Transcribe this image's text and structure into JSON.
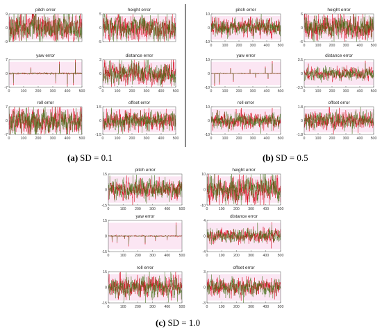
{
  "colors": {
    "series_red": "#d8091c",
    "series_green": "#3f6d12",
    "band": "#fbe6f3",
    "axis": "#555555",
    "divider": "#111111"
  },
  "groups": [
    {
      "id": "a",
      "caption_label": "(a)",
      "caption_text": "SD = 0.1"
    },
    {
      "id": "b",
      "caption_label": "(b)",
      "caption_text": "SD = 0.5"
    },
    {
      "id": "c",
      "caption_label": "(c)",
      "caption_text": "SD = 1.0"
    }
  ],
  "chart_data": [
    {
      "group": "a",
      "panel": "pitch-error",
      "type": "line",
      "title": "pitch error",
      "x_range": [
        0,
        500
      ],
      "xticks": [],
      "ylim": [
        -9,
        9
      ],
      "yticks": [
        -9,
        0,
        9
      ],
      "series": [
        {
          "color": "#d8091c"
        },
        {
          "color": "#3f6d12"
        }
      ],
      "amplitude": 0.8,
      "spikes": []
    },
    {
      "group": "a",
      "panel": "height-error",
      "type": "line",
      "title": "height error",
      "x_range": [
        0,
        500
      ],
      "xticks": [],
      "ylim": [
        -5,
        5
      ],
      "yticks": [
        -5,
        0,
        5
      ],
      "series": [
        {
          "color": "#d8091c"
        },
        {
          "color": "#3f6d12"
        }
      ],
      "amplitude": 0.7,
      "spikes": []
    },
    {
      "group": "a",
      "panel": "yaw-error",
      "type": "line",
      "title": "yaw error",
      "x_range": [
        0,
        500
      ],
      "xticks": [
        0,
        100,
        200,
        300,
        400,
        500
      ],
      "ylim": [
        -7,
        7
      ],
      "yticks": [
        -7,
        0,
        7
      ],
      "series": [
        {
          "color": "#d8091c"
        },
        {
          "color": "#3f6d12"
        }
      ],
      "amplitude": 0.05,
      "spikes": [
        {
          "x": 30,
          "y": -6
        },
        {
          "x": 150,
          "y": 3
        },
        {
          "x": 320,
          "y": -5
        },
        {
          "x": 345,
          "y": 6
        },
        {
          "x": 400,
          "y": -6.5
        },
        {
          "x": 440,
          "y": -6
        },
        {
          "x": 455,
          "y": 7
        }
      ]
    },
    {
      "group": "a",
      "panel": "distance-error",
      "type": "line",
      "title": "distance error",
      "x_range": [
        0,
        500
      ],
      "xticks": [
        0,
        100,
        200,
        300,
        400,
        500
      ],
      "ylim": [
        -3,
        3
      ],
      "yticks": [
        -3,
        0,
        3
      ],
      "series": [
        {
          "color": "#d8091c"
        },
        {
          "color": "#3f6d12"
        }
      ],
      "amplitude": 0.6,
      "spikes": [
        {
          "x": 20,
          "y": 2.8
        },
        {
          "x": 60,
          "y": -2.9
        },
        {
          "x": 470,
          "y": 3
        }
      ]
    },
    {
      "group": "a",
      "panel": "roll-error",
      "type": "line",
      "title": "roll error",
      "x_range": [
        0,
        500
      ],
      "xticks": [
        0,
        100,
        200,
        300,
        400,
        500
      ],
      "ylim": [
        -7,
        7
      ],
      "yticks": [
        -7,
        0,
        7
      ],
      "series": [
        {
          "color": "#d8091c"
        },
        {
          "color": "#3f6d12"
        }
      ],
      "amplitude": 0.75,
      "spikes": []
    },
    {
      "group": "a",
      "panel": "offset-error",
      "type": "line",
      "title": "offset error",
      "x_range": [
        0,
        500
      ],
      "xticks": [
        0,
        100,
        200,
        300,
        400,
        500
      ],
      "ylim": [
        -1.5,
        1.5
      ],
      "yticks": [
        -1.5,
        0,
        1.5
      ],
      "series": [
        {
          "color": "#d8091c"
        },
        {
          "color": "#3f6d12"
        }
      ],
      "amplitude": 0.55,
      "spikes": []
    },
    {
      "group": "b",
      "panel": "pitch-error",
      "type": "line",
      "title": "pitch error",
      "x_range": [
        0,
        500
      ],
      "xticks": [
        0,
        100,
        200,
        300,
        400,
        500
      ],
      "ylim": [
        -10,
        10
      ],
      "yticks": [
        -10,
        0,
        10
      ],
      "series": [
        {
          "color": "#d8091c"
        },
        {
          "color": "#3f6d12"
        }
      ],
      "amplitude": 0.5,
      "spikes": []
    },
    {
      "group": "b",
      "panel": "height-error",
      "type": "line",
      "title": "height error",
      "x_range": [
        0,
        500
      ],
      "xticks": [
        0,
        100,
        200,
        300,
        400,
        500
      ],
      "ylim": [
        -6,
        6
      ],
      "yticks": [
        -6,
        0,
        6
      ],
      "series": [
        {
          "color": "#d8091c"
        },
        {
          "color": "#3f6d12"
        }
      ],
      "amplitude": 0.7,
      "spikes": [
        {
          "x": 440,
          "y": -5.5
        }
      ]
    },
    {
      "group": "b",
      "panel": "yaw-error",
      "type": "line",
      "title": "yaw error",
      "x_range": [
        0,
        500
      ],
      "xticks": [
        0,
        100,
        200,
        300,
        400,
        500
      ],
      "ylim": [
        -10,
        10
      ],
      "yticks": [
        -10,
        0,
        10
      ],
      "series": [
        {
          "color": "#d8091c"
        },
        {
          "color": "#3f6d12"
        }
      ],
      "amplitude": 0.03,
      "spikes": [
        {
          "x": 25,
          "y": -9
        },
        {
          "x": 60,
          "y": -8
        },
        {
          "x": 140,
          "y": 4
        },
        {
          "x": 160,
          "y": -6
        },
        {
          "x": 280,
          "y": 3
        },
        {
          "x": 320,
          "y": -3
        },
        {
          "x": 390,
          "y": 5
        },
        {
          "x": 410,
          "y": -4
        },
        {
          "x": 440,
          "y": 9
        }
      ]
    },
    {
      "group": "b",
      "panel": "distance-error",
      "type": "line",
      "title": "distance error",
      "x_range": [
        0,
        500
      ],
      "xticks": [
        0,
        100,
        200,
        300,
        400,
        500
      ],
      "ylim": [
        -3.5,
        3.5
      ],
      "yticks": [
        -3.5,
        0,
        3.5
      ],
      "series": [
        {
          "color": "#d8091c"
        },
        {
          "color": "#3f6d12"
        }
      ],
      "amplitude": 0.35,
      "spikes": [
        {
          "x": 30,
          "y": 2.5
        },
        {
          "x": 440,
          "y": 3.2
        }
      ]
    },
    {
      "group": "b",
      "panel": "roll-error",
      "type": "line",
      "title": "roll error",
      "x_range": [
        0,
        500
      ],
      "xticks": [
        0,
        100,
        200,
        300,
        400,
        500
      ],
      "ylim": [
        -10,
        10
      ],
      "yticks": [
        -10,
        0,
        10
      ],
      "series": [
        {
          "color": "#d8091c"
        },
        {
          "color": "#3f6d12"
        }
      ],
      "amplitude": 0.45,
      "spikes": []
    },
    {
      "group": "b",
      "panel": "offset-error",
      "type": "line",
      "title": "offset error",
      "x_range": [
        0,
        500
      ],
      "xticks": [
        0,
        100,
        200,
        300,
        400,
        500
      ],
      "ylim": [
        -1.8,
        1.8
      ],
      "yticks": [
        -1.8,
        0,
        1.8
      ],
      "series": [
        {
          "color": "#d8091c"
        },
        {
          "color": "#3f6d12"
        }
      ],
      "amplitude": 0.5,
      "spikes": []
    },
    {
      "group": "c",
      "panel": "pitch-error",
      "type": "line",
      "title": "pitch error",
      "x_range": [
        0,
        500
      ],
      "xticks": [
        0,
        100,
        200,
        300,
        400,
        500
      ],
      "ylim": [
        -15,
        15
      ],
      "yticks": [
        -15,
        0,
        15
      ],
      "series": [
        {
          "color": "#d8091c"
        },
        {
          "color": "#3f6d12"
        }
      ],
      "amplitude": 0.5,
      "spikes": []
    },
    {
      "group": "c",
      "panel": "height-error",
      "type": "line",
      "title": "height error",
      "x_range": [
        0,
        500
      ],
      "xticks": [
        0,
        100,
        200,
        300,
        400,
        500
      ],
      "ylim": [
        -10,
        10
      ],
      "yticks": [
        -10,
        0,
        10
      ],
      "series": [
        {
          "color": "#d8091c"
        },
        {
          "color": "#3f6d12"
        }
      ],
      "amplitude": 0.7,
      "spikes": []
    },
    {
      "group": "c",
      "panel": "yaw-error",
      "type": "line",
      "title": "yaw error",
      "x_range": [
        0,
        500
      ],
      "xticks": [
        0,
        100,
        200,
        300,
        400,
        500
      ],
      "ylim": [
        -15,
        15
      ],
      "yticks": [
        -15,
        0,
        15
      ],
      "series": [
        {
          "color": "#d8091c"
        },
        {
          "color": "#3f6d12"
        }
      ],
      "amplitude": 0.04,
      "spikes": [
        {
          "x": 25,
          "y": -6
        },
        {
          "x": 60,
          "y": -7
        },
        {
          "x": 110,
          "y": -3
        },
        {
          "x": 140,
          "y": -10
        },
        {
          "x": 250,
          "y": -8
        },
        {
          "x": 320,
          "y": -5
        },
        {
          "x": 400,
          "y": -4
        },
        {
          "x": 460,
          "y": 13
        }
      ]
    },
    {
      "group": "c",
      "panel": "distance-error",
      "type": "line",
      "title": "distance error",
      "x_range": [
        0,
        500
      ],
      "xticks": [
        0,
        100,
        200,
        300,
        400,
        500
      ],
      "ylim": [
        -4,
        4
      ],
      "yticks": [
        -4,
        0,
        4
      ],
      "series": [
        {
          "color": "#d8091c"
        },
        {
          "color": "#3f6d12"
        }
      ],
      "amplitude": 0.35,
      "spikes": [
        {
          "x": 440,
          "y": 3.6
        }
      ]
    },
    {
      "group": "c",
      "panel": "roll-error",
      "type": "line",
      "title": "roll error",
      "x_range": [
        0,
        500
      ],
      "xticks": [
        0,
        100,
        200,
        300,
        400,
        500
      ],
      "ylim": [
        -15,
        15
      ],
      "yticks": [
        -15,
        0,
        15
      ],
      "series": [
        {
          "color": "#d8091c"
        },
        {
          "color": "#3f6d12"
        }
      ],
      "amplitude": 0.55,
      "spikes": []
    },
    {
      "group": "c",
      "panel": "offset-error",
      "type": "line",
      "title": "offset error",
      "x_range": [
        0,
        500
      ],
      "xticks": [
        0,
        100,
        200,
        300,
        400,
        500
      ],
      "ylim": [
        -3,
        3
      ],
      "yticks": [
        -3,
        0,
        3
      ],
      "series": [
        {
          "color": "#d8091c"
        },
        {
          "color": "#3f6d12"
        }
      ],
      "amplitude": 0.45,
      "spikes": []
    }
  ]
}
